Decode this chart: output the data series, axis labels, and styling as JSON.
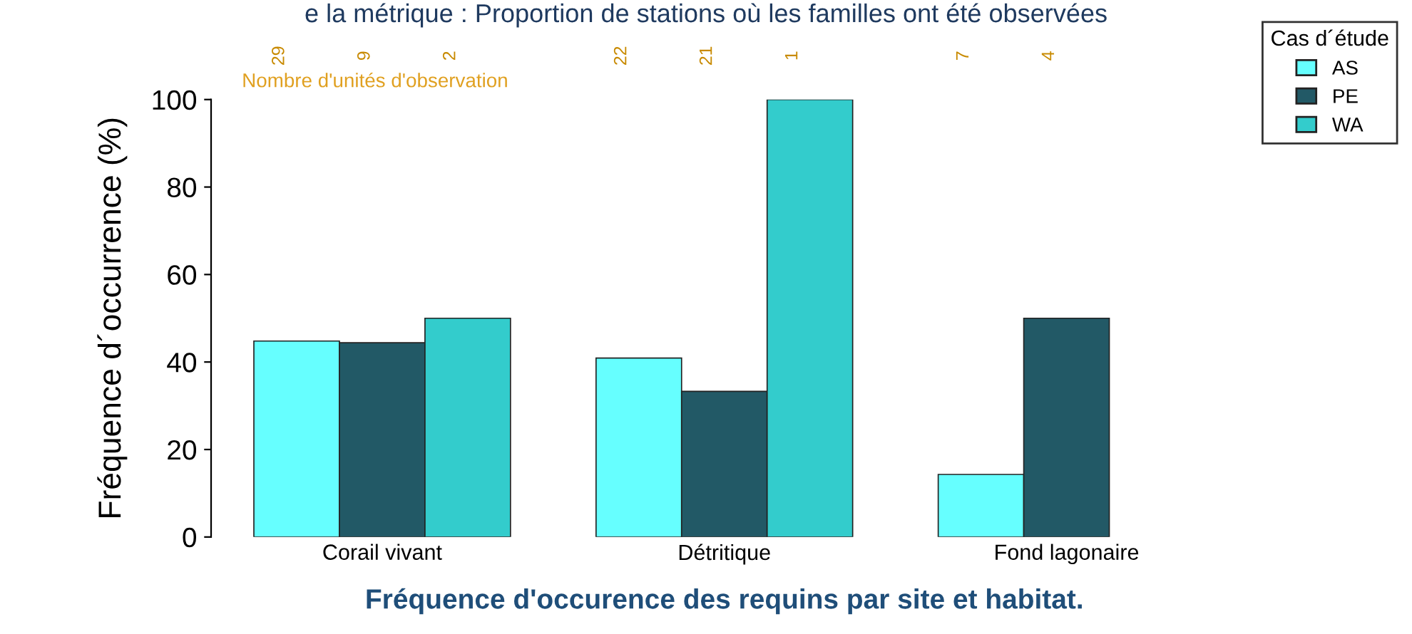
{
  "chart_data": {
    "type": "bar",
    "title": "e la métrique : Proportion de stations où les familles ont été observées",
    "xlabel": "Fréquence d'occurence des requins par site et habitat.",
    "ylabel": "Fréquence d´occurrence (%)",
    "legend_title": "Cas d´étude",
    "categories": [
      "Corail vivant",
      "Détritique",
      "Fond lagonaire"
    ],
    "series": [
      {
        "name": "AS",
        "color": "#66ffff",
        "values": [
          44.8,
          40.9,
          14.3
        ]
      },
      {
        "name": "PE",
        "color": "#225966",
        "values": [
          44.4,
          33.3,
          50
        ]
      },
      {
        "name": "WA",
        "color": "#33cccc",
        "values": [
          50,
          100,
          null
        ]
      }
    ],
    "ylim": [
      0,
      100
    ],
    "yticks": [
      0,
      20,
      40,
      60,
      80,
      100
    ],
    "legend": "top right",
    "grid": false,
    "annotations": [
      "Nombre d'unités d'observation",
      "29",
      "9",
      "2",
      "22",
      "21",
      "1",
      "7",
      "4"
    ]
  }
}
